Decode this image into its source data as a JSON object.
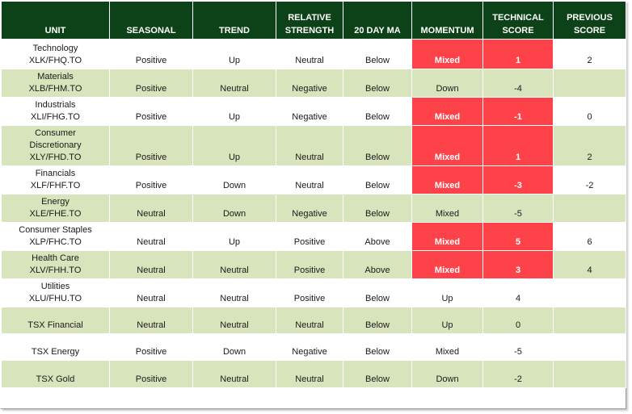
{
  "headers": {
    "unit": "UNIT",
    "seasonal": "SEASONAL",
    "trend": "TREND",
    "relative_strength_1": "RELATIVE",
    "relative_strength_2": "STRENGTH",
    "ma20": "20 DAY MA",
    "momentum": "MOMENTUM",
    "technical_1": "TECHNICAL",
    "technical_2": "SCORE",
    "previous_1": "PREVIOUS",
    "previous_2": "SCORE"
  },
  "rows": [
    {
      "name_lines": [
        "Technology",
        "XLK/FHQ.TO"
      ],
      "seasonal": "Positive",
      "trend": "Up",
      "relative_strength": "Neutral",
      "ma20": "Below",
      "momentum": "Mixed",
      "technical_score": "1",
      "previous_score": "2"
    },
    {
      "name_lines": [
        "Materials",
        "XLB/FHM.TO"
      ],
      "seasonal": "Positive",
      "trend": "Neutral",
      "relative_strength": "Negative",
      "ma20": "Below",
      "momentum": "Down",
      "technical_score": "-4",
      "previous_score": ""
    },
    {
      "name_lines": [
        "Industrials",
        "XLI/FHG.TO"
      ],
      "seasonal": "Positive",
      "trend": "Up",
      "relative_strength": "Negative",
      "ma20": "Below",
      "momentum": "Mixed",
      "technical_score": "-1",
      "previous_score": "0"
    },
    {
      "name_lines": [
        "Consumer",
        "Discretionary",
        "XLY/FHD.TO"
      ],
      "seasonal": "Positive",
      "trend": "Up",
      "relative_strength": "Neutral",
      "ma20": "Below",
      "momentum": "Mixed",
      "technical_score": "1",
      "previous_score": "2"
    },
    {
      "name_lines": [
        "Financials",
        "XLF/FHF.TO"
      ],
      "seasonal": "Positive",
      "trend": "Down",
      "relative_strength": "Neutral",
      "ma20": "Below",
      "momentum": "Mixed",
      "technical_score": "-3",
      "previous_score": "-2"
    },
    {
      "name_lines": [
        "Energy",
        "XLE/FHE.TO"
      ],
      "seasonal": "Neutral",
      "trend": "Down",
      "relative_strength": "Negative",
      "ma20": "Below",
      "momentum": "Mixed",
      "technical_score": "-5",
      "previous_score": ""
    },
    {
      "name_lines": [
        "Consumer Staples",
        "XLP/FHC.TO"
      ],
      "seasonal": "Neutral",
      "trend": "Up",
      "relative_strength": "Positive",
      "ma20": "Above",
      "momentum": "Mixed",
      "technical_score": "5",
      "previous_score": "6"
    },
    {
      "name_lines": [
        "Health Care",
        "XLV/FHH.TO"
      ],
      "seasonal": "Neutral",
      "trend": "Neutral",
      "relative_strength": "Positive",
      "ma20": "Above",
      "momentum": "Mixed",
      "technical_score": "3",
      "previous_score": "4"
    },
    {
      "name_lines": [
        "Utilities",
        "XLU/FHU.TO"
      ],
      "seasonal": "Neutral",
      "trend": "Neutral",
      "relative_strength": "Positive",
      "ma20": "Below",
      "momentum": "Up",
      "technical_score": "4",
      "previous_score": ""
    },
    {
      "name_lines": [
        "TSX Financial"
      ],
      "seasonal": "Neutral",
      "trend": "Neutral",
      "relative_strength": "Neutral",
      "ma20": "Below",
      "momentum": "Up",
      "technical_score": "0",
      "previous_score": ""
    },
    {
      "name_lines": [
        "TSX Energy"
      ],
      "seasonal": "Positive",
      "trend": "Down",
      "relative_strength": "Negative",
      "ma20": "Below",
      "momentum": "Mixed",
      "technical_score": "-5",
      "previous_score": ""
    },
    {
      "name_lines": [
        "TSX Gold"
      ],
      "seasonal": "Positive",
      "trend": "Neutral",
      "relative_strength": "Neutral",
      "ma20": "Below",
      "momentum": "Down",
      "technical_score": "-2",
      "previous_score": ""
    }
  ],
  "highlighted_rows": [
    0,
    2,
    3,
    4,
    6,
    7
  ],
  "colors": {
    "header_bg": "#0d4219",
    "header_text": "#ffffff",
    "band": "#d8e4bc",
    "highlight": "#fd4249"
  }
}
